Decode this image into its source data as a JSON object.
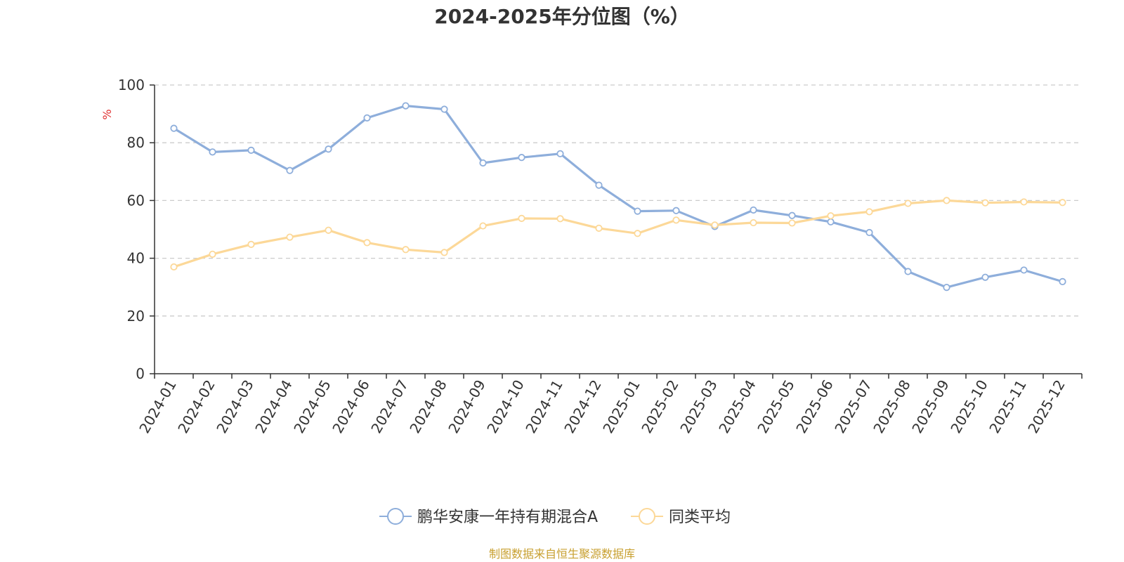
{
  "chart_data": {
    "type": "line",
    "title": "2024-2025年分位图（%）",
    "ylabel": "%",
    "ylim": [
      0,
      100
    ],
    "yticks": [
      0,
      20,
      40,
      60,
      80,
      100
    ],
    "grid": true,
    "legend_position": "bottom",
    "categories": [
      "2024-01",
      "2024-02",
      "2024-03",
      "2024-04",
      "2024-05",
      "2024-06",
      "2024-07",
      "2024-08",
      "2024-09",
      "2024-10",
      "2024-11",
      "2024-12",
      "2025-01",
      "2025-02",
      "2025-03",
      "2025-04",
      "2025-05",
      "2025-06",
      "2025-07",
      "2025-08",
      "2025-09",
      "2025-10",
      "2025-11",
      "2025-12"
    ],
    "series": [
      {
        "name": "鹏华安康一年持有期混合A",
        "color": "#8eaedb",
        "values": [
          85.0,
          76.8,
          77.4,
          70.4,
          77.8,
          88.6,
          92.8,
          91.6,
          73.0,
          74.9,
          76.2,
          65.3,
          56.3,
          56.5,
          51.0,
          56.7,
          54.8,
          52.6,
          48.9,
          35.4,
          29.9,
          33.4,
          35.9,
          31.9
        ]
      },
      {
        "name": "同类平均",
        "color": "#fcd898",
        "values": [
          37.0,
          41.4,
          44.8,
          47.3,
          49.7,
          45.4,
          43.0,
          42.0,
          51.2,
          53.8,
          53.7,
          50.4,
          48.6,
          53.2,
          51.5,
          52.3,
          52.2,
          54.7,
          56.1,
          59.0,
          60.0,
          59.2,
          59.5,
          59.3
        ]
      }
    ]
  },
  "footer": {
    "source": "制图数据来自恒生聚源数据库"
  },
  "colors": {
    "axis": "#333333",
    "grid": "#cccccc",
    "unit_label": "#e03030",
    "source_text": "#c8a030"
  }
}
